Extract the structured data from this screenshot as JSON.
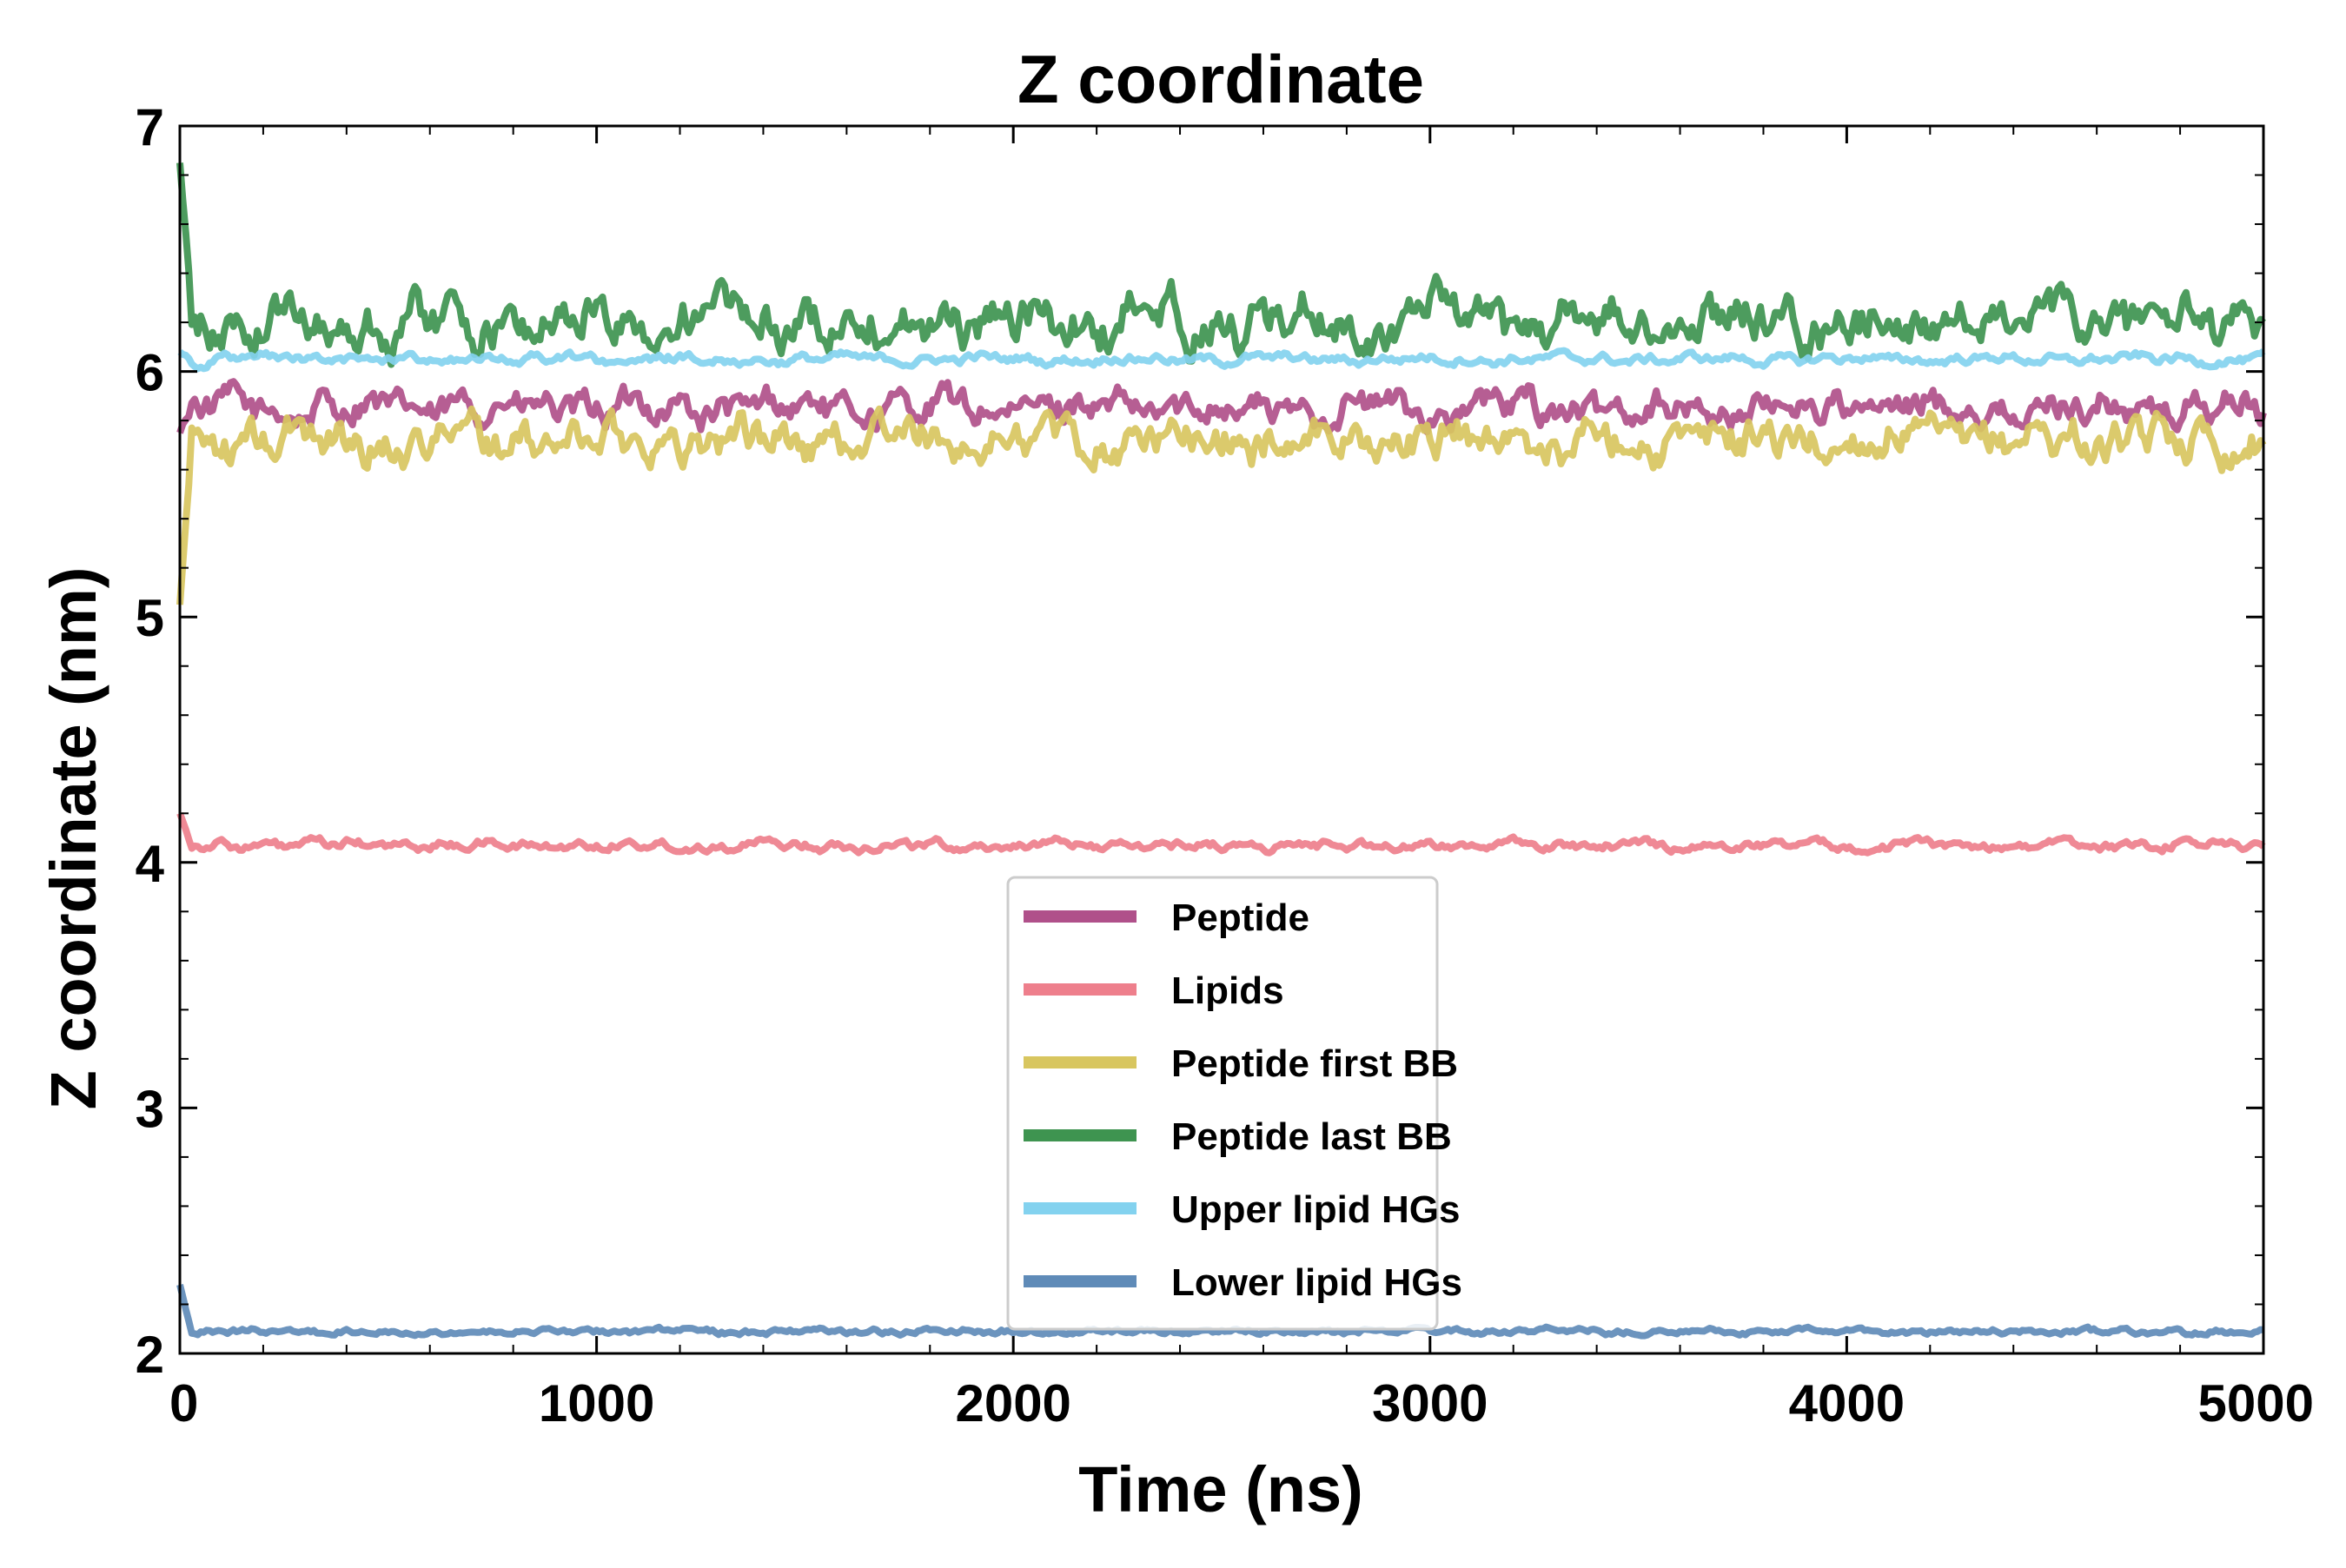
{
  "chart_data": {
    "type": "line",
    "title": "Z coordinate",
    "xlabel": "Time (ns)",
    "ylabel": "Z coordinate (nm)",
    "xlim": [
      0,
      5000
    ],
    "ylim": [
      2,
      7
    ],
    "xticks": [
      0,
      1000,
      2000,
      3000,
      4000,
      5000
    ],
    "yticks": [
      2,
      3,
      4,
      5,
      6,
      7
    ],
    "grid": false,
    "legend_position": "lower-center",
    "series": [
      {
        "name": "Peptide",
        "color": "#b0508a",
        "start": 5.75,
        "mean": 5.85,
        "amplitude": 0.09
      },
      {
        "name": "Lipids",
        "color": "#ee7f8c",
        "start": 4.2,
        "mean": 4.07,
        "amplitude": 0.025
      },
      {
        "name": "Peptide first BB",
        "color": "#d8c65f",
        "start": 5.05,
        "mean": 5.72,
        "amplitude": 0.11
      },
      {
        "name": "Peptide last BB",
        "color": "#3e9450",
        "start": 6.85,
        "mean": 6.2,
        "amplitude": 0.13
      },
      {
        "name": "Upper lipid HGs",
        "color": "#83d2ef",
        "start": 6.08,
        "mean": 6.05,
        "amplitude": 0.025
      },
      {
        "name": "Lower lipid HGs",
        "color": "#5f8bb8",
        "start": 2.28,
        "mean": 2.09,
        "amplitude": 0.015
      }
    ]
  }
}
